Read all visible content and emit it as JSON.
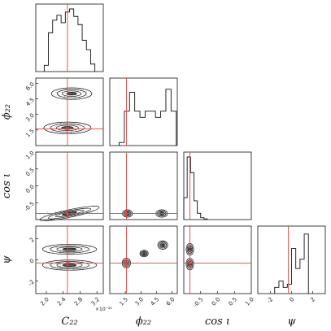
{
  "chart_data": {
    "type": "corner",
    "parameters": [
      {
        "key": "C22",
        "label": "C₂₂",
        "sub": "",
        "range": [
          1.75,
          3.35
        ],
        "ticks": [
          "2.0",
          "2.4",
          "2.8",
          "3.2"
        ],
        "tick_values": [
          2.0,
          2.4,
          2.8,
          3.2
        ],
        "scale_label": "×10⁻²⁶",
        "truth": 2.5
      },
      {
        "key": "phi22",
        "label": "ϕ₂₂",
        "range": [
          0.0,
          6.5
        ],
        "ticks": [
          "1.5",
          "3.0",
          "4.5",
          "6.0"
        ],
        "tick_values": [
          1.5,
          3.0,
          4.5,
          6.0
        ],
        "truth": 1.6
      },
      {
        "key": "cosiota",
        "label": "cos ι",
        "range": [
          -1.0,
          1.0
        ],
        "ticks": [
          "-0.5",
          "0.0",
          "0.5",
          "1.0"
        ],
        "tick_values": [
          -0.5,
          0.0,
          0.5,
          1.0
        ],
        "truth": -0.82
      },
      {
        "key": "psi",
        "label": "ψ",
        "range": [
          -3.2,
          3.2
        ],
        "ticks": [
          "-2",
          "0",
          "2"
        ],
        "tick_values": [
          -2,
          0,
          2
        ],
        "truth": -0.3
      }
    ],
    "histograms": {
      "C22": {
        "bins": [
          1.95,
          2.05,
          2.15,
          2.25,
          2.35,
          2.45,
          2.55,
          2.65,
          2.75,
          2.85,
          2.95,
          3.05,
          3.15
        ],
        "counts": [
          0.1,
          0.62,
          0.82,
          0.9,
          0.78,
          0.95,
          1.0,
          0.88,
          0.75,
          0.5,
          0.35,
          0.12
        ]
      },
      "phi22": {
        "bins": [
          0.9,
          1.4,
          1.9,
          2.4,
          2.9,
          3.4,
          3.9,
          4.4,
          4.9,
          5.4,
          5.9,
          6.4
        ],
        "counts": [
          0.05,
          0.55,
          0.85,
          0.55,
          0.45,
          0.55,
          0.55,
          0.45,
          0.55,
          0.9,
          0.55
        ]
      },
      "cosiota": {
        "bins": [
          -1.0,
          -0.9,
          -0.8,
          -0.7,
          -0.6,
          -0.5,
          -0.4,
          -0.3
        ],
        "counts": [
          0.35,
          1.0,
          0.75,
          0.3,
          0.1,
          0.03,
          0.01
        ]
      },
      "psi": {
        "bins": [
          -1.6,
          -1.2,
          -0.8,
          -0.4,
          0.0,
          0.4,
          0.8,
          1.2,
          1.6
        ],
        "counts": [
          0.1,
          0.2,
          0.1,
          0.15,
          0.72,
          0.4,
          0.55,
          0.95
        ]
      }
    },
    "joint_modes": [
      {
        "x": "C22",
        "y": "phi22",
        "modes": [
          {
            "cx": 2.5,
            "cy": 1.7,
            "sx": 0.35,
            "sy": 0.35,
            "rho": 0
          },
          {
            "cx": 2.6,
            "cy": 5.0,
            "sx": 0.3,
            "sy": 0.35,
            "rho": 0
          }
        ]
      },
      {
        "x": "C22",
        "y": "cosiota",
        "modes": [
          {
            "cx": 2.55,
            "cy": -0.82,
            "sx": 0.45,
            "sy": 0.07,
            "rho": 0.3
          }
        ]
      },
      {
        "x": "C22",
        "y": "psi",
        "modes": [
          {
            "cx": 2.55,
            "cy": 1.0,
            "sx": 0.4,
            "sy": 0.3,
            "rho": 0
          },
          {
            "cx": 2.55,
            "cy": -0.5,
            "sx": 0.4,
            "sy": 0.3,
            "rho": 0
          }
        ]
      },
      {
        "x": "phi22",
        "y": "cosiota",
        "modes": [
          {
            "cx": 1.7,
            "cy": -0.82,
            "sx": 0.3,
            "sy": 0.07,
            "rho": 0
          },
          {
            "cx": 5.0,
            "cy": -0.82,
            "sx": 0.35,
            "sy": 0.07,
            "rho": 0
          }
        ]
      },
      {
        "x": "phi22",
        "y": "psi",
        "modes": [
          {
            "cx": 1.6,
            "cy": -0.3,
            "sx": 0.25,
            "sy": 0.3,
            "rho": 0
          },
          {
            "cx": 3.3,
            "cy": 0.6,
            "sx": 0.25,
            "sy": 0.2,
            "rho": 0
          },
          {
            "cx": 5.1,
            "cy": 1.4,
            "sx": 0.3,
            "sy": 0.25,
            "rho": 0
          }
        ]
      },
      {
        "x": "cosiota",
        "y": "psi",
        "modes": [
          {
            "cx": -0.82,
            "cy": 1.0,
            "sx": 0.07,
            "sy": 0.35,
            "rho": 0
          },
          {
            "cx": -0.82,
            "cy": -0.4,
            "sx": 0.07,
            "sy": 0.35,
            "rho": 0
          }
        ]
      }
    ],
    "truth_color": "#e8413c",
    "line_color": "#111111",
    "grid": false
  }
}
